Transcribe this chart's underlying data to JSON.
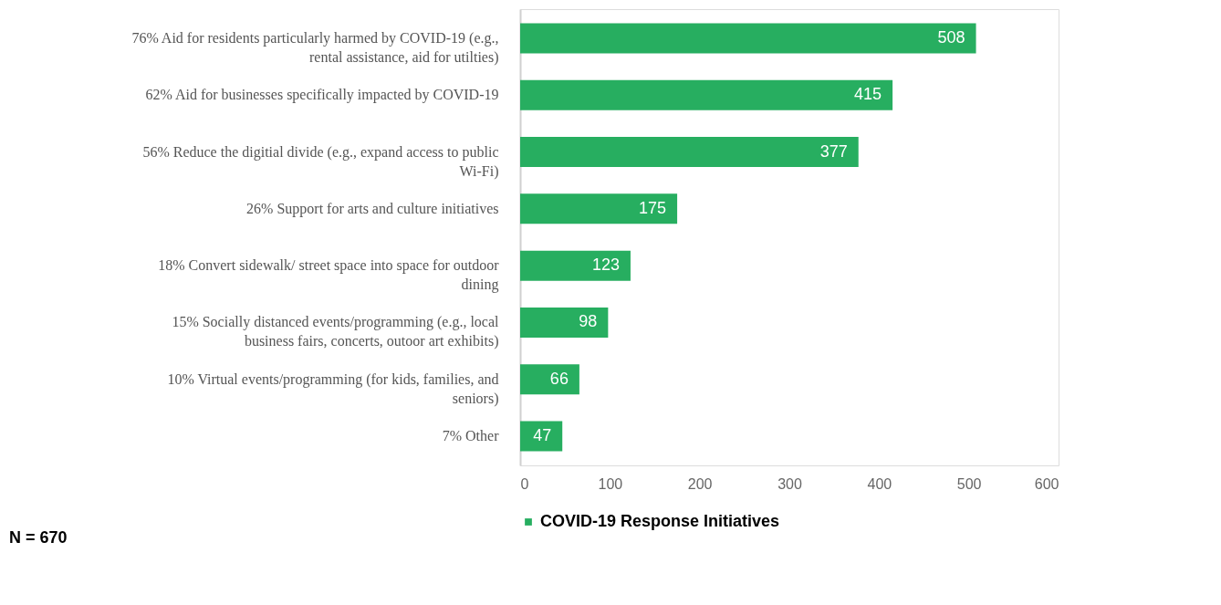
{
  "chart_data": {
    "type": "bar",
    "orientation": "horizontal",
    "categories": [
      "76% Aid for residents particularly harmed by COVID-19 (e.g., rental assistance, aid for utilties)",
      "62% Aid for businesses specifically impacted by COVID-19",
      "56% Reduce the digitial divide (e.g., expand access to public Wi-Fi)",
      "26% Support for arts and culture initiatives",
      "18% Convert sidewalk/ street space into space for outdoor dining",
      "15% Socially distanced events/programming (e.g., local business fairs, concerts, outoor art exhibits)",
      "10% Virtual events/programming (for kids, families, and seniors)",
      "7% Other"
    ],
    "series": [
      {
        "name": "COVID-19 Response Initiatives",
        "color": "#27ae60",
        "values": [
          508,
          415,
          377,
          175,
          123,
          98,
          66,
          47
        ]
      }
    ],
    "xlim": [
      0,
      600
    ],
    "xticks": [
      0,
      100,
      200,
      300,
      400,
      500,
      600
    ],
    "data_labels": true,
    "grid": false,
    "legend": "bottom",
    "annotations": [
      "N = 670"
    ]
  }
}
